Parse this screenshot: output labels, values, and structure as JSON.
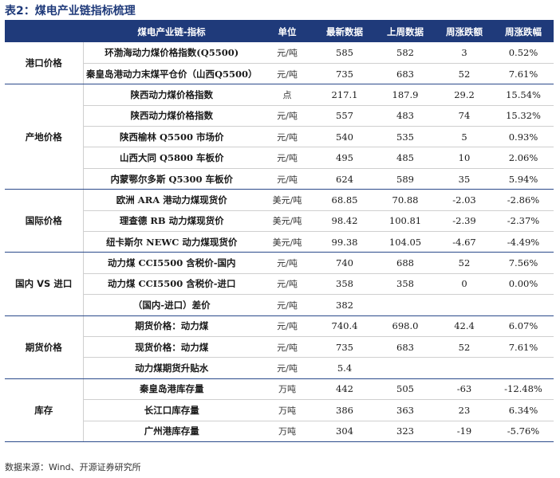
{
  "title": "表2：煤电产业链指标梳理",
  "headers": [
    "煤电产业链-指标",
    "单位",
    "最新数据",
    "上周数据",
    "周涨跌额",
    "周涨跌幅"
  ],
  "groups": [
    {
      "name": "港口价格",
      "rows": [
        {
          "name": "环渤海动力煤价格指数(Q5500)",
          "unit": "元/吨",
          "latest": "585",
          "prev": "582",
          "change": "3",
          "pct": "0.52%"
        },
        {
          "name": "秦皇岛港动力末煤平仓价（山西Q5500）",
          "unit": "元/吨",
          "latest": "735",
          "prev": "683",
          "change": "52",
          "pct": "7.61%"
        }
      ]
    },
    {
      "name": "产地价格",
      "rows": [
        {
          "name": "陕西动力煤价格指数",
          "unit": "点",
          "latest": "217.1",
          "prev": "187.9",
          "change": "29.2",
          "pct": "15.54%"
        },
        {
          "name": "陕西动力煤价格指数",
          "unit": "元/吨",
          "latest": "557",
          "prev": "483",
          "change": "74",
          "pct": "15.32%"
        },
        {
          "name": "陕西榆林 Q5500 市场价",
          "unit": "元/吨",
          "latest": "540",
          "prev": "535",
          "change": "5",
          "pct": "0.93%"
        },
        {
          "name": "山西大同 Q5800 车板价",
          "unit": "元/吨",
          "latest": "495",
          "prev": "485",
          "change": "10",
          "pct": "2.06%"
        },
        {
          "name": "内蒙鄂尔多斯 Q5300 车板价",
          "unit": "元/吨",
          "latest": "624",
          "prev": "589",
          "change": "35",
          "pct": "5.94%"
        }
      ]
    },
    {
      "name": "国际价格",
      "rows": [
        {
          "name": "欧洲 ARA 港动力煤现货价",
          "unit": "美元/吨",
          "latest": "68.85",
          "prev": "70.88",
          "change": "-2.03",
          "pct": "-2.86%"
        },
        {
          "name": "理查德 RB 动力煤现货价",
          "unit": "美元/吨",
          "latest": "98.42",
          "prev": "100.81",
          "change": "-2.39",
          "pct": "-2.37%"
        },
        {
          "name": "纽卡斯尔 NEWC 动力煤现货价",
          "unit": "美元/吨",
          "latest": "99.38",
          "prev": "104.05",
          "change": "-4.67",
          "pct": "-4.49%"
        }
      ]
    },
    {
      "name": "国内 VS 进口",
      "rows": [
        {
          "name": "动力煤 CCI5500 含税价-国内",
          "unit": "元/吨",
          "latest": "740",
          "prev": "688",
          "change": "52",
          "pct": "7.56%"
        },
        {
          "name": "动力煤 CCI5500 含税价-进口",
          "unit": "元/吨",
          "latest": "358",
          "prev": "358",
          "change": "0",
          "pct": "0.00%"
        },
        {
          "name": "（国内-进口）差价",
          "unit": "元/吨",
          "latest": "382",
          "prev": "",
          "change": "",
          "pct": ""
        }
      ]
    },
    {
      "name": "期货价格",
      "rows": [
        {
          "name": "期货价格：动力煤",
          "unit": "元/吨",
          "latest": "740.4",
          "prev": "698.0",
          "change": "42.4",
          "pct": "6.07%"
        },
        {
          "name": "现货价格：动力煤",
          "unit": "元/吨",
          "latest": "735",
          "prev": "683",
          "change": "52",
          "pct": "7.61%"
        },
        {
          "name": "动力煤期货升贴水",
          "unit": "元/吨",
          "latest": "5.4",
          "prev": "",
          "change": "",
          "pct": ""
        }
      ]
    },
    {
      "name": "库存",
      "rows": [
        {
          "name": "秦皇岛港库存量",
          "unit": "万吨",
          "latest": "442",
          "prev": "505",
          "change": "-63",
          "pct": "-12.48%"
        },
        {
          "name": "长江口库存量",
          "unit": "万吨",
          "latest": "386",
          "prev": "363",
          "change": "23",
          "pct": "6.34%"
        },
        {
          "name": "广州港库存量",
          "unit": "万吨",
          "latest": "304",
          "prev": "323",
          "change": "-19",
          "pct": "-5.76%"
        }
      ]
    }
  ],
  "source": "数据来源：Wind、开源证券研究所"
}
